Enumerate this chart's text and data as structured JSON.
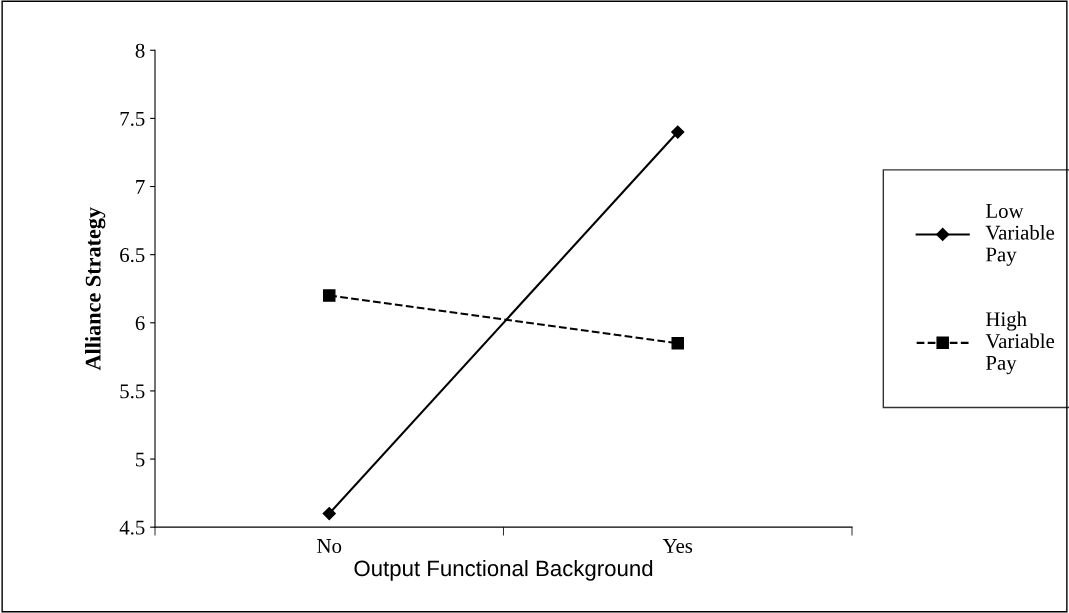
{
  "chart_data": {
    "type": "line",
    "xlabel": "Output Functional Background",
    "ylabel": "Alliance Strategy",
    "categories": [
      "No",
      "Yes"
    ],
    "series": [
      {
        "name": "Low Variable Pay",
        "color": "#000000",
        "values": [
          4.6,
          7.4
        ],
        "marker": "diamond",
        "line_style": "solid"
      },
      {
        "name": "High Variable Pay",
        "color": "#000000",
        "values": [
          6.2,
          5.85
        ],
        "marker": "square",
        "line_style": "dashed"
      }
    ],
    "ylim": [
      4.5,
      8
    ],
    "yticks": [
      4.5,
      5,
      5.5,
      6,
      6.5,
      7,
      7.5,
      8
    ],
    "grid": false,
    "legend": "right"
  }
}
